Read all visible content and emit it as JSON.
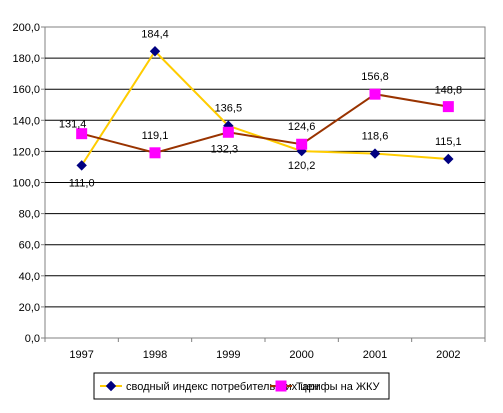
{
  "chart_data": {
    "type": "line",
    "categories": [
      "1997",
      "1998",
      "1999",
      "2000",
      "2001",
      "2002"
    ],
    "ylim": [
      0,
      200
    ],
    "y_ticks": [
      0,
      20,
      40,
      60,
      80,
      100,
      120,
      140,
      160,
      180,
      200
    ],
    "y_tick_labels": [
      "0,0",
      "20,0",
      "40,0",
      "60,0",
      "80,0",
      "100,0",
      "120,0",
      "140,0",
      "160,0",
      "180,0",
      "200,0"
    ],
    "grid": true,
    "legend_position": "bottom",
    "series": [
      {
        "name": "сводный индекс потребительских цен",
        "values": [
          111.0,
          184.4,
          136.5,
          120.2,
          118.6,
          115.1
        ],
        "labels": [
          "111,0",
          "184,4",
          "136,5",
          "120,2",
          "118,6",
          "115,1"
        ],
        "line_color": "#ffcc00",
        "marker_color": "#000080",
        "marker": "diamond"
      },
      {
        "name": "Тарифы на ЖКУ",
        "values": [
          131.4,
          119.1,
          132.3,
          124.6,
          156.8,
          148.8
        ],
        "labels": [
          "131,4",
          "119,1",
          "132,3",
          "124,6",
          "156,8",
          "148,8"
        ],
        "line_color": "#993300",
        "marker_color": "#ff00ff",
        "marker": "square"
      }
    ]
  }
}
